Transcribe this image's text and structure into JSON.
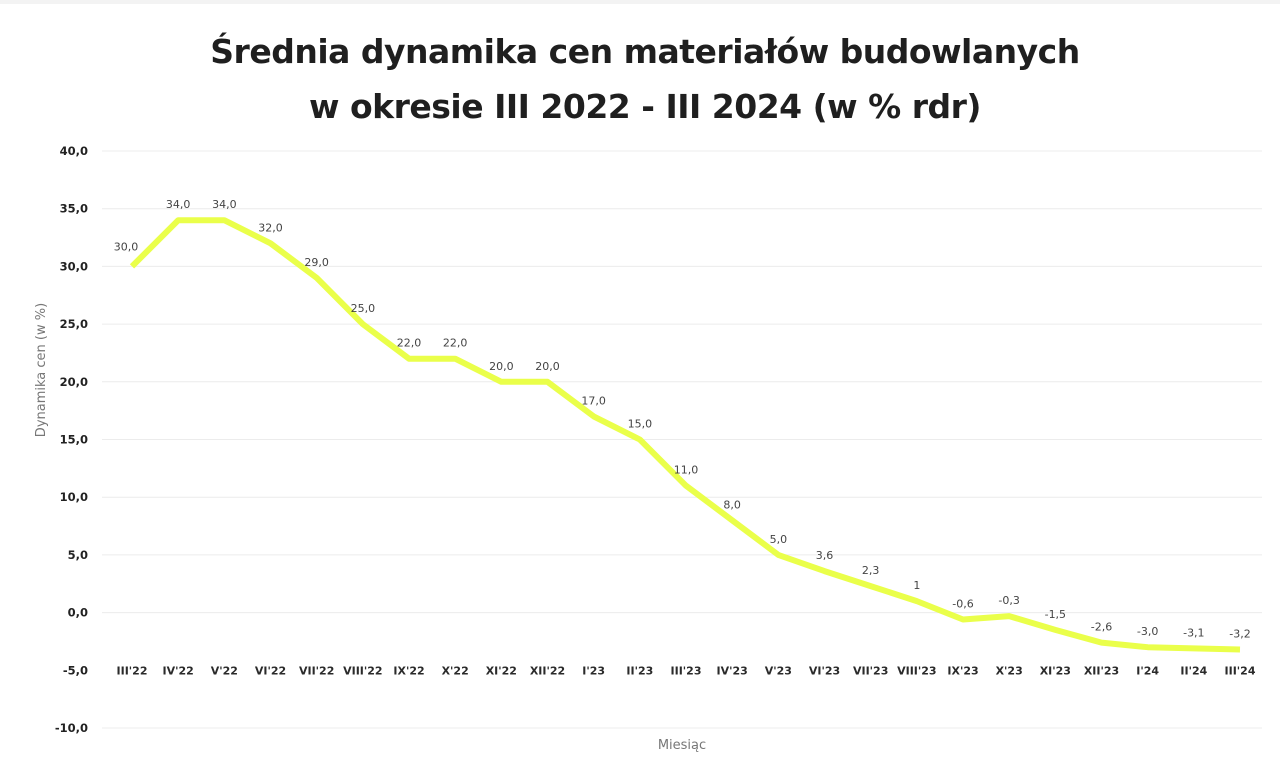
{
  "chart_data": {
    "type": "line",
    "title": "Średnia dynamika cen materiałów budowlanych",
    "subtitle": "w okresie III 2022 - III 2024 (w % rdr)",
    "xlabel": "Miesiąc",
    "ylabel": "Dynamika cen (w %)",
    "ylim": [
      -10,
      40
    ],
    "yticks": [
      "40,0",
      "35,0",
      "30,0",
      "25,0",
      "20,0",
      "15,0",
      "10,0",
      "5,0",
      "0,0",
      "-5,0",
      "-10,0"
    ],
    "grid": true,
    "legend": null,
    "line_color": "#eaff4a",
    "categories": [
      "III'22",
      "IV'22",
      "V'22",
      "VI'22",
      "VII'22",
      "VIII'22",
      "IX'22",
      "X'22",
      "XI'22",
      "XII'22",
      "I'23",
      "II'23",
      "III'23",
      "IV'23",
      "V'23",
      "VI'23",
      "VII'23",
      "VIII'23",
      "IX'23",
      "X'23",
      "XI'23",
      "XII'23",
      "I'24",
      "II'24",
      "III'24"
    ],
    "values": [
      30.0,
      34.0,
      34.0,
      32.0,
      29.0,
      25.0,
      22.0,
      22.0,
      20.0,
      20.0,
      17.0,
      15.0,
      11.0,
      8.0,
      5.0,
      3.6,
      2.3,
      1,
      -0.6,
      -0.3,
      -1.5,
      -2.6,
      -3.0,
      -3.1,
      -3.2
    ],
    "value_labels": [
      "30,0",
      "34,0",
      "34,0",
      "32,0",
      "29,0",
      "25,0",
      "22,0",
      "22,0",
      "20,0",
      "20,0",
      "17,0",
      "15,0",
      "11,0",
      "8,0",
      "5,0",
      "3,6",
      "2,3",
      "1",
      "-0,6",
      "-0,3",
      "-1,5",
      "-2,6",
      "-3,0",
      "-3,1",
      "-3,2"
    ]
  }
}
